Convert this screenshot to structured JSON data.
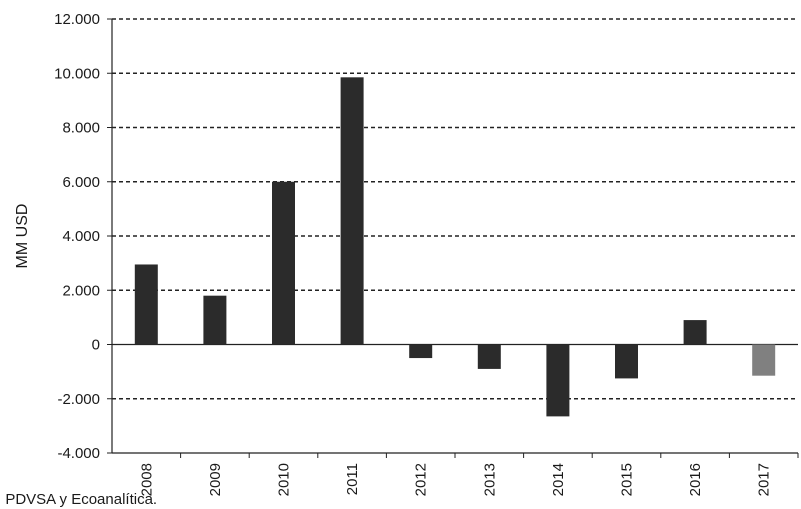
{
  "chart_data": {
    "type": "bar",
    "categories": [
      "2008",
      "2009",
      "2010",
      "2011",
      "2012",
      "2013",
      "2014",
      "2015",
      "2016",
      "2017"
    ],
    "values": [
      2950,
      1800,
      6000,
      9850,
      -500,
      -900,
      -2650,
      -1250,
      900,
      -1150
    ],
    "ylabel": "MM USD",
    "xlabel": "",
    "ylim": [
      -4000,
      12000
    ],
    "yticks": [
      -4000,
      -2000,
      0,
      2000,
      4000,
      6000,
      8000,
      10000,
      12000
    ],
    "ytick_labels": [
      "-4.000",
      "-2.000",
      "0",
      "2.000",
      "4.000",
      "6.000",
      "8.000",
      "10.000",
      "12.000"
    ],
    "grid": "horizontal dashed",
    "bar_colors": [
      "#2b2b2b",
      "#2b2b2b",
      "#2b2b2b",
      "#2b2b2b",
      "#2b2b2b",
      "#2b2b2b",
      "#2b2b2b",
      "#2b2b2b",
      "#2b2b2b",
      "#808080"
    ]
  },
  "source_note": ": PDVSA y Ecoanalítica."
}
